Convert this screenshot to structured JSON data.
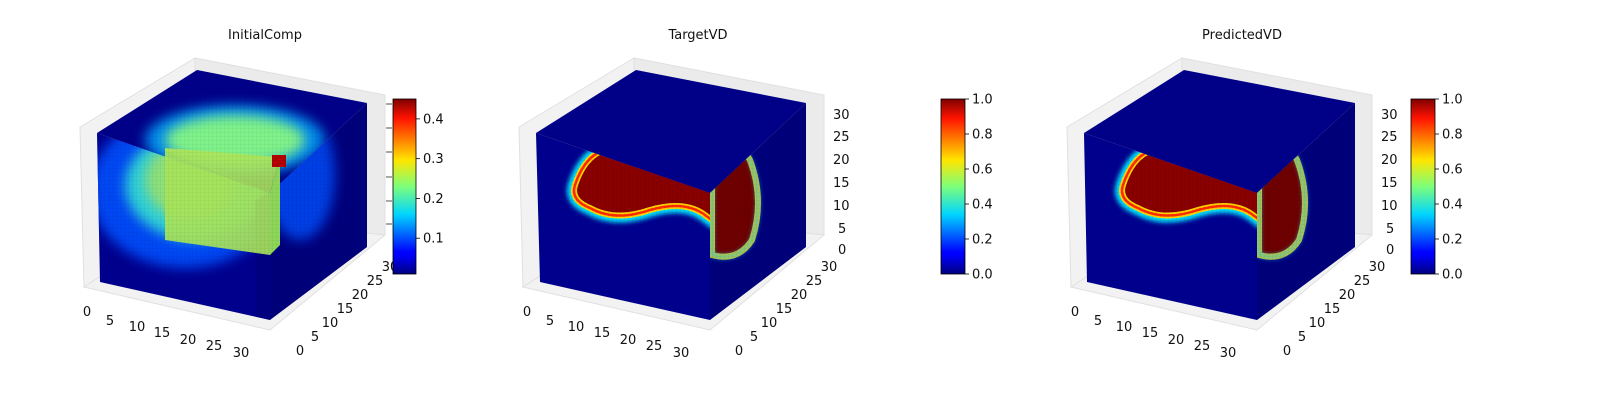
{
  "colors": {
    "colormap": "jet",
    "background": "#ffffff",
    "pane": "#f2f2f2",
    "cube_base": "#00007f"
  },
  "chart_data": [
    {
      "type": "3d-voxel-heatmap",
      "title": "InitialComp",
      "x_ticks": [
        "0",
        "5",
        "10",
        "15",
        "20",
        "25",
        "30"
      ],
      "y_ticks": [
        "0",
        "5",
        "10",
        "15",
        "20",
        "25",
        "30"
      ],
      "z_ticks": [],
      "xlim": [
        0,
        32
      ],
      "ylim": [
        0,
        32
      ],
      "zlim": [
        0,
        32
      ],
      "colorbar": {
        "min": 0.01,
        "max": 0.45,
        "ticks": [
          "0.1",
          "0.2",
          "0.3",
          "0.4"
        ],
        "tick_values": [
          0.1,
          0.2,
          0.3,
          0.4
        ]
      },
      "value_range": [
        0.01,
        0.45
      ],
      "grid": true
    },
    {
      "type": "3d-voxel-heatmap",
      "title": "TargetVD",
      "x_ticks": [
        "0",
        "5",
        "10",
        "15",
        "20",
        "25",
        "30"
      ],
      "y_ticks": [
        "0",
        "5",
        "10",
        "15",
        "20",
        "25",
        "30"
      ],
      "z_ticks": [
        "0",
        "5",
        "10",
        "15",
        "20",
        "25",
        "30"
      ],
      "xlim": [
        0,
        32
      ],
      "ylim": [
        0,
        32
      ],
      "zlim": [
        0,
        32
      ],
      "colorbar": {
        "min": 0.0,
        "max": 1.0,
        "ticks": [
          "0.0",
          "0.2",
          "0.4",
          "0.6",
          "0.8",
          "1.0"
        ],
        "tick_values": [
          0.0,
          0.2,
          0.4,
          0.6,
          0.8,
          1.0
        ]
      },
      "value_range": [
        0.0,
        1.0
      ],
      "grid": true
    },
    {
      "type": "3d-voxel-heatmap",
      "title": "PredictedVD",
      "x_ticks": [
        "0",
        "5",
        "10",
        "15",
        "20",
        "25",
        "30"
      ],
      "y_ticks": [
        "0",
        "5",
        "10",
        "15",
        "20",
        "25",
        "30"
      ],
      "z_ticks": [
        "0",
        "5",
        "10",
        "15",
        "20",
        "25",
        "30"
      ],
      "xlim": [
        0,
        32
      ],
      "ylim": [
        0,
        32
      ],
      "zlim": [
        0,
        32
      ],
      "colorbar": {
        "min": 0.0,
        "max": 1.0,
        "ticks": [
          "0.0",
          "0.2",
          "0.4",
          "0.6",
          "0.8",
          "1.0"
        ],
        "tick_values": [
          0.0,
          0.2,
          0.4,
          0.6,
          0.8,
          1.0
        ]
      },
      "value_range": [
        0.0,
        1.0
      ],
      "grid": true
    }
  ]
}
